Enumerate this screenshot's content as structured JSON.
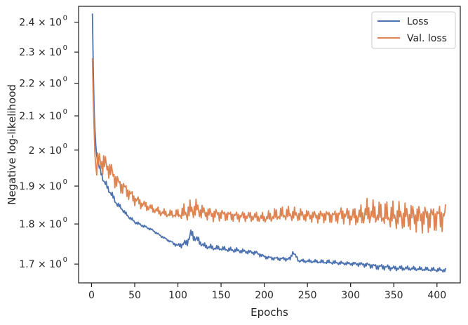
{
  "chart_data": {
    "type": "line",
    "title": "",
    "xlabel": "Epochs",
    "ylabel": "Negative log-likelihood",
    "xlim": [
      -15,
      427
    ],
    "ylim": [
      1.655,
      2.455
    ],
    "yscale": "log",
    "grid": false,
    "legend_position": "top-right",
    "x_ticks": [
      0,
      50,
      100,
      150,
      200,
      250,
      300,
      350,
      400
    ],
    "y_ticks": [
      {
        "value": 1.7,
        "mantissa": "1.7"
      },
      {
        "value": 1.8,
        "mantissa": "1.8"
      },
      {
        "value": 1.9,
        "mantissa": "1.9"
      },
      {
        "value": 2.0,
        "mantissa": "2"
      },
      {
        "value": 2.1,
        "mantissa": "2.1"
      },
      {
        "value": 2.2,
        "mantissa": "2.2"
      },
      {
        "value": 2.3,
        "mantissa": "2.3"
      },
      {
        "value": 2.4,
        "mantissa": "2.4"
      }
    ],
    "y_tick_multiplier": "× 10",
    "y_tick_exponent": "0",
    "series": [
      {
        "name": "Loss",
        "color": "#4c72b0",
        "x": [
          1,
          2,
          3,
          4,
          5,
          7,
          9,
          12,
          15,
          20,
          25,
          30,
          35,
          40,
          45,
          50,
          60,
          70,
          80,
          90,
          100,
          110,
          115,
          120,
          125,
          130,
          140,
          150,
          160,
          170,
          180,
          190,
          200,
          210,
          220,
          230,
          233,
          240,
          250,
          260,
          270,
          280,
          290,
          300,
          310,
          320,
          330,
          340,
          350,
          360,
          370,
          380,
          390,
          400,
          410
        ],
        "values": [
          2.43,
          2.25,
          2.12,
          2.06,
          2.01,
          1.97,
          1.95,
          1.93,
          1.91,
          1.89,
          1.87,
          1.85,
          1.84,
          1.825,
          1.815,
          1.805,
          1.795,
          1.785,
          1.77,
          1.757,
          1.745,
          1.752,
          1.775,
          1.765,
          1.755,
          1.745,
          1.74,
          1.738,
          1.735,
          1.733,
          1.73,
          1.728,
          1.718,
          1.714,
          1.713,
          1.712,
          1.73,
          1.708,
          1.707,
          1.706,
          1.705,
          1.704,
          1.702,
          1.701,
          1.7,
          1.698,
          1.694,
          1.693,
          1.69,
          1.69,
          1.689,
          1.688,
          1.687,
          1.686,
          1.685
        ],
        "oscillation": [
          0,
          0,
          0,
          0.005,
          0.008,
          0.01,
          0.012,
          0.012,
          0.012,
          0.01,
          0.01,
          0.008,
          0.007,
          0.006,
          0.005,
          0.005,
          0.004,
          0.003,
          0.003,
          0.003,
          0.006,
          0.012,
          0.014,
          0.013,
          0.01,
          0.008,
          0.008,
          0.007,
          0.007,
          0.007,
          0.006,
          0.006,
          0.005,
          0.005,
          0.005,
          0.006,
          0.005,
          0.005,
          0.005,
          0.005,
          0.006,
          0.006,
          0.005,
          0.005,
          0.006,
          0.007,
          0.008,
          0.008,
          0.007,
          0.007,
          0.006,
          0.006,
          0.006,
          0.006,
          0.006
        ]
      },
      {
        "name": "Val. loss",
        "color": "#dd8452",
        "x": [
          1,
          2,
          3,
          4,
          5,
          7,
          10,
          15,
          20,
          25,
          30,
          40,
          50,
          60,
          70,
          80,
          90,
          100,
          110,
          120,
          130,
          140,
          150,
          160,
          170,
          180,
          190,
          200,
          210,
          220,
          230,
          240,
          250,
          260,
          270,
          280,
          290,
          300,
          310,
          320,
          330,
          340,
          350,
          360,
          370,
          380,
          390,
          400,
          410
        ],
        "values": [
          2.28,
          2.15,
          2.06,
          1.99,
          1.95,
          1.96,
          1.97,
          1.96,
          1.95,
          1.93,
          1.91,
          1.89,
          1.865,
          1.85,
          1.84,
          1.83,
          1.825,
          1.825,
          1.83,
          1.84,
          1.83,
          1.825,
          1.825,
          1.822,
          1.82,
          1.82,
          1.818,
          1.815,
          1.82,
          1.825,
          1.825,
          1.823,
          1.822,
          1.82,
          1.822,
          1.82,
          1.825,
          1.82,
          1.82,
          1.83,
          1.825,
          1.823,
          1.82,
          1.82,
          1.82,
          1.818,
          1.818,
          1.818,
          1.82
        ],
        "oscillation": [
          0,
          0,
          0,
          0.01,
          0.03,
          0.04,
          0.04,
          0.035,
          0.03,
          0.03,
          0.025,
          0.022,
          0.018,
          0.015,
          0.012,
          0.012,
          0.012,
          0.015,
          0.03,
          0.03,
          0.02,
          0.02,
          0.018,
          0.016,
          0.015,
          0.015,
          0.015,
          0.015,
          0.02,
          0.022,
          0.022,
          0.02,
          0.018,
          0.018,
          0.02,
          0.02,
          0.025,
          0.025,
          0.03,
          0.04,
          0.035,
          0.04,
          0.042,
          0.042,
          0.042,
          0.042,
          0.042,
          0.042,
          0.042
        ]
      }
    ]
  }
}
